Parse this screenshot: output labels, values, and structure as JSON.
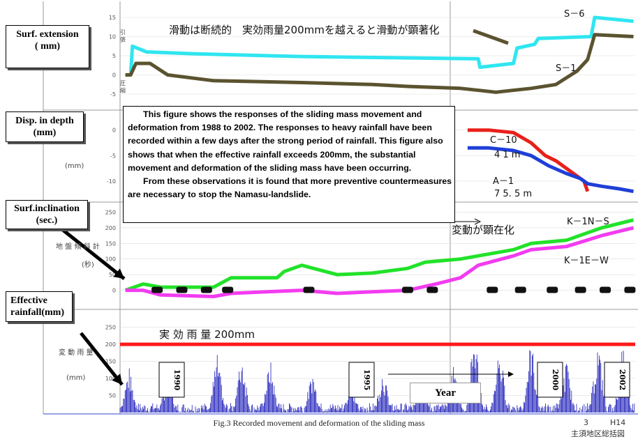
{
  "panel_labels": {
    "surf_extension": [
      "Surf. extension",
      "( mm)"
    ],
    "disp_in_depth": [
      "Disp. in depth",
      "(mm)"
    ],
    "surf_inclination": [
      "Surf.inclination",
      "(sec.)"
    ],
    "effective_rainfall": [
      "Effective",
      "rainfall(mm)"
    ]
  },
  "note": {
    "paragraph1": "This figure shows the responses of the sliding mass movement and deformation from 1988 to 2002. The responses to heavy rainfall have been recorded within a few days after the strong period of rainfall. This figure also shows that when the effective rainfall exceeds 200mm, the substantial movement and deformation of the sliding mass have been occurring.",
    "paragraph2": "From these observations it is found that more preventive countermeasures are necessary to stop the Namasu-landslide."
  },
  "japanese_annotations": {
    "top": "滑動は断続的　実効雨量200mmを越えると滑動が顕著化",
    "inclination": "変動が顕在化",
    "threshold": "実 効 雨 量 200mm",
    "rain_axis": "変 動 雨 量",
    "incl_axis": "地 盤 傾 斜 計",
    "ext_axis_up": "引 張",
    "ext_axis_down": "圧 縮",
    "mm": "(mm)",
    "sec": "(秒)",
    "footer_right": "主須地区総括図"
  },
  "year_label": "Year",
  "bottom_right": [
    "3",
    "H14"
  ],
  "caption": "Fig.3 Recorded movement and deformation of the sliding mass",
  "colors": {
    "s6": "#2fe6f0",
    "s1": "#5b5330",
    "c10": "#e8211a",
    "a1": "#1f3fd8",
    "k1ns": "#22e22a",
    "k1ew": "#f23cf0",
    "incl_black": "#111111",
    "rain": "#1a1ab8",
    "threshold": "#ff1a1a"
  },
  "chart_data": [
    {
      "type": "line",
      "panel": "Surf. extension",
      "ylim": [
        -7,
        17
      ],
      "yticks": [
        -5,
        0,
        5,
        10,
        15
      ],
      "x_unit": "year",
      "series": [
        {
          "name": "S-6",
          "x": [
            1988.0,
            1988.15,
            1988.2,
            1988.6,
            1990.0,
            1993.0,
            1995.5,
            1998.0,
            1998.05,
            1999.0,
            1999.1,
            1999.6,
            1999.7,
            2001.2,
            2001.3,
            2002.4
          ],
          "y": [
            0,
            0,
            7.5,
            6,
            5.5,
            4.8,
            4.5,
            4.2,
            2,
            3,
            7,
            8,
            9.5,
            10,
            15,
            14
          ]
        },
        {
          "name": "S-1",
          "x": [
            1988.0,
            1988.15,
            1988.3,
            1988.7,
            1989.2,
            1990.5,
            1993.0,
            1995.0,
            1996.0,
            1997.5,
            1998.5,
            1999.5,
            2000.2,
            2000.8,
            2001.1,
            2001.3,
            2002.4
          ],
          "y": [
            0,
            0,
            3,
            3,
            0,
            -1.5,
            -2,
            -2.5,
            -3,
            -3.5,
            -4.5,
            -3.5,
            -2.5,
            1,
            4,
            10.5,
            10
          ]
        }
      ]
    },
    {
      "type": "line",
      "panel": "Disp. in depth",
      "ylim": [
        -13,
        2
      ],
      "yticks": [
        -10,
        -5,
        0
      ],
      "series": [
        {
          "name": "C-10",
          "x": [
            1997.7,
            1998.3,
            1999.0,
            1999.5,
            1999.9,
            2000.2,
            2000.6,
            2000.8,
            2001.0,
            2001.1
          ],
          "y": [
            0,
            0,
            -0.5,
            -2.5,
            -5,
            -6,
            -8,
            -9,
            -10,
            -12
          ]
        },
        {
          "name": "A-1",
          "x": [
            1997.7,
            1998.3,
            1999.0,
            1999.5,
            2000.0,
            2000.5,
            2000.9,
            2001.1,
            2001.5,
            2002.0,
            2002.4
          ],
          "y": [
            -3.5,
            -3.5,
            -4,
            -5,
            -7,
            -8.5,
            -9.5,
            -10.5,
            -11,
            -11.5,
            -12
          ]
        }
      ],
      "annotations": [
        "4 1 m",
        "7 5. 5 m"
      ]
    },
    {
      "type": "line",
      "panel": "Surf.inclination",
      "ylim": [
        -30,
        260
      ],
      "yticks": [
        0,
        50,
        100,
        150,
        200,
        250
      ],
      "series": [
        {
          "name": "K-1N-S",
          "x": [
            1988.0,
            1988.5,
            1989.0,
            1990.5,
            1991.0,
            1992.3,
            1992.5,
            1993.0,
            1994.0,
            1995.0,
            1996.0,
            1996.5,
            1997.5,
            1998.0,
            1999.0,
            1999.5,
            2000.5,
            2001.5,
            2002.4
          ],
          "y": [
            0,
            20,
            10,
            10,
            40,
            40,
            60,
            80,
            50,
            55,
            70,
            90,
            100,
            110,
            130,
            150,
            160,
            200,
            225
          ]
        },
        {
          "name": "K-1E-W",
          "x": [
            1988.0,
            1988.5,
            1989.0,
            1990.5,
            1991.0,
            1992.0,
            1993.0,
            1994.0,
            1995.0,
            1996.0,
            1996.8,
            1997.5,
            1998.0,
            1999.0,
            1999.5,
            2000.5,
            2001.5,
            2002.4
          ],
          "y": [
            0,
            0,
            -15,
            -20,
            -10,
            -5,
            0,
            -10,
            -5,
            0,
            20,
            40,
            80,
            110,
            130,
            140,
            175,
            200
          ]
        }
      ]
    },
    {
      "type": "bar",
      "panel": "Effective rainfall",
      "ylim": [
        0,
        280
      ],
      "yticks": [
        50,
        100,
        150,
        200,
        250
      ],
      "threshold": 200,
      "year_marks": [
        "1990",
        "1995",
        "2000",
        "2002"
      ],
      "peaks": [
        {
          "x": 1988.1,
          "y": 140
        },
        {
          "x": 1989.2,
          "y": 120
        },
        {
          "x": 1990.6,
          "y": 175
        },
        {
          "x": 1991.3,
          "y": 185
        },
        {
          "x": 1992.1,
          "y": 165
        },
        {
          "x": 1993.3,
          "y": 130
        },
        {
          "x": 1994.4,
          "y": 95
        },
        {
          "x": 1995.3,
          "y": 135
        },
        {
          "x": 1996.4,
          "y": 120
        },
        {
          "x": 1997.3,
          "y": 150
        },
        {
          "x": 1997.9,
          "y": 255
        },
        {
          "x": 1998.6,
          "y": 210
        },
        {
          "x": 1999.5,
          "y": 230
        },
        {
          "x": 2000.5,
          "y": 160
        },
        {
          "x": 2001.4,
          "y": 220
        },
        {
          "x": 2002.1,
          "y": 205
        }
      ]
    }
  ]
}
